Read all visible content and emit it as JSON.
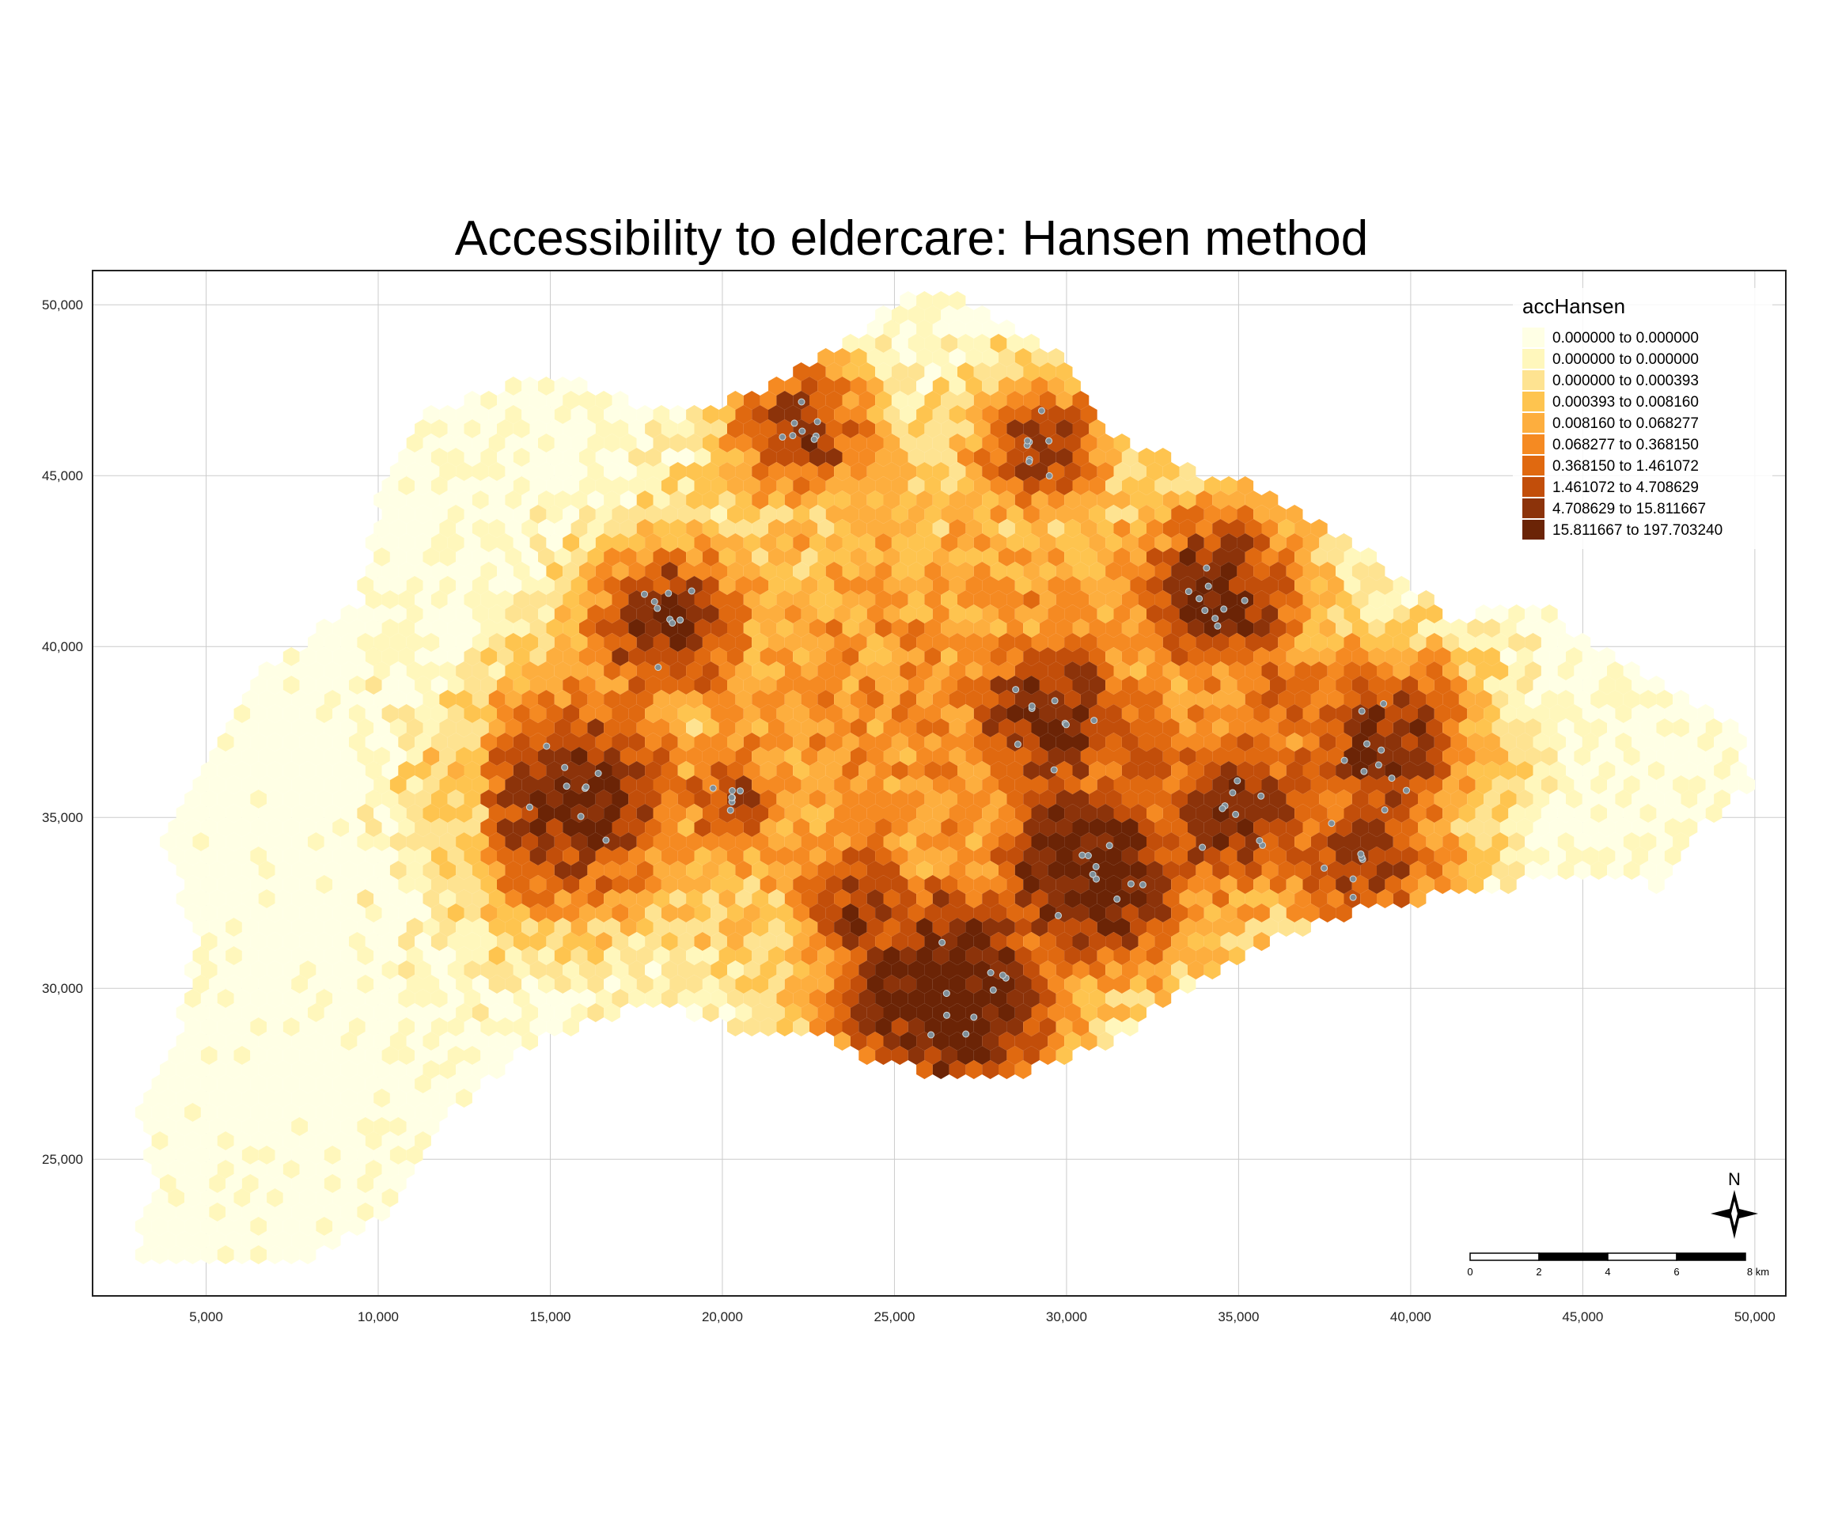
{
  "title": "Accessibility to eldercare: Hansen method",
  "chart_data": {
    "type": "heatmap",
    "subtype": "hexagon choropleth map",
    "x_ticks": [
      "5,000",
      "10,000",
      "15,000",
      "20,000",
      "25,000",
      "30,000",
      "35,000",
      "40,000",
      "45,000",
      "50,000"
    ],
    "y_ticks": [
      "25,000",
      "30,000",
      "35,000",
      "40,000",
      "45,000",
      "50,000"
    ],
    "xlim": [
      1700,
      50900
    ],
    "ylim": [
      21000,
      51000
    ],
    "grid": true,
    "legend": {
      "title": "accHansen",
      "position": "top-right",
      "classes": [
        {
          "label": "0.000000 to 0.000000",
          "color": "#ffffe5"
        },
        {
          "label": "0.000000 to 0.000000",
          "color": "#fff7bc"
        },
        {
          "label": "0.000000 to 0.000393",
          "color": "#fee391"
        },
        {
          "label": "0.000393 to 0.008160",
          "color": "#fec44f"
        },
        {
          "label": "0.008160 to 0.068277",
          "color": "#fdae3e"
        },
        {
          "label": "0.068277 to 0.368150",
          "color": "#f58a22"
        },
        {
          "label": "0.368150 to 1.461072",
          "color": "#e06910"
        },
        {
          "label": "1.461072 to 4.708629",
          "color": "#c24e0a"
        },
        {
          "label": "4.708629 to 15.811667",
          "color": "#8c330a"
        },
        {
          "label": "15.811667 to 197.703240",
          "color": "#6b2406"
        }
      ]
    },
    "scale_bar": {
      "labels": [
        "0",
        "2",
        "4",
        "6",
        "8 km"
      ]
    },
    "north_arrow": "N",
    "point_color": "#7f8f99"
  }
}
